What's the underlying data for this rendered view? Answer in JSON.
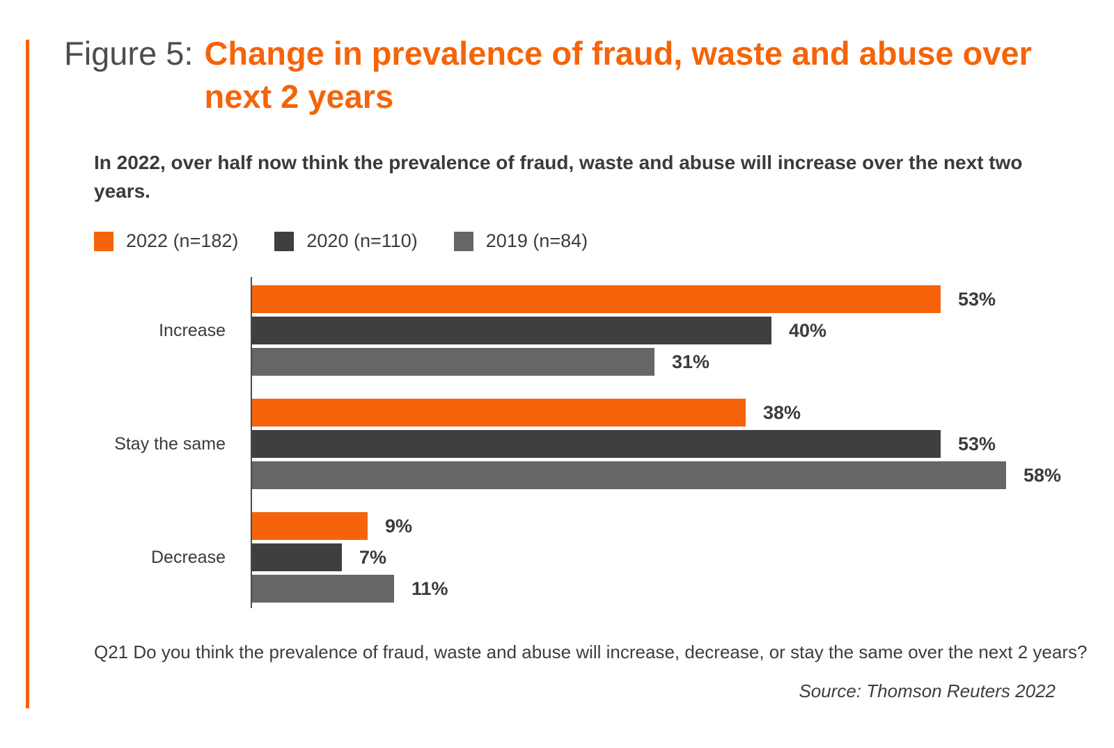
{
  "accent_color": "#f5640a",
  "title": {
    "prefix": "Figure 5:",
    "line1": "Change in prevalence of fraud, waste and abuse over",
    "line2": "next 2 years"
  },
  "subtitle": "In 2022, over half now think the prevalence of fraud, waste and abuse will increase over the next two years.",
  "legend": [
    {
      "label": "2022 (n=182)",
      "color": "#f5640a"
    },
    {
      "label": "2020 (n=110)",
      "color": "#3f3f3f"
    },
    {
      "label": "2019 (n=84)",
      "color": "#666666"
    }
  ],
  "chart_data": {
    "type": "bar",
    "orientation": "horizontal",
    "title": "Change in prevalence of fraud, waste and abuse over next 2 years",
    "categories": [
      "Increase",
      "Stay the same",
      "Decrease"
    ],
    "series": [
      {
        "name": "2022 (n=182)",
        "color": "#f5640a",
        "values": [
          53,
          38,
          9
        ]
      },
      {
        "name": "2020 (n=110)",
        "color": "#3f3f3f",
        "values": [
          40,
          53,
          7
        ]
      },
      {
        "name": "2019 (n=84)",
        "color": "#666666",
        "values": [
          31,
          58,
          11
        ]
      }
    ],
    "value_suffix": "%",
    "xlim": [
      0,
      62
    ],
    "grid": false,
    "legend_position": "top",
    "data_labels": true
  },
  "footer": {
    "question": "Q21 Do you think the prevalence of fraud, waste and abuse will increase, decrease, or stay the same over the next 2 years?",
    "source": "Source: Thomson Reuters 2022"
  }
}
